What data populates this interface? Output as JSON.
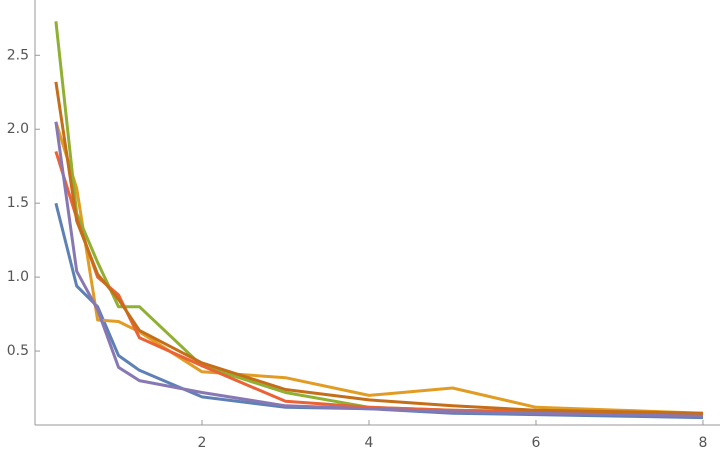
{
  "chart_data": {
    "type": "line",
    "x": [
      0.25,
      0.5,
      0.75,
      1,
      1.25,
      2,
      3,
      4,
      5,
      6,
      7,
      8
    ],
    "series": [
      {
        "color": "#5e81b5",
        "values": [
          1.5,
          0.94,
          0.8,
          0.47,
          0.37,
          0.19,
          0.12,
          0.11,
          0.08,
          0.07,
          0.06,
          0.05
        ]
      },
      {
        "color": "#e19c24",
        "values": [
          2.05,
          1.6,
          0.71,
          0.7,
          0.63,
          0.36,
          0.32,
          0.2,
          0.25,
          0.12,
          0.1,
          0.08
        ]
      },
      {
        "color": "#8fb032",
        "values": [
          2.73,
          1.43,
          1.1,
          0.8,
          0.8,
          0.4,
          0.22,
          0.12,
          0.1,
          0.09,
          0.08,
          0.07
        ]
      },
      {
        "color": "#eb6235",
        "values": [
          1.85,
          1.4,
          1.0,
          0.88,
          0.59,
          0.4,
          0.16,
          0.12,
          0.1,
          0.09,
          0.08,
          0.07
        ]
      },
      {
        "color": "#8778b3",
        "values": [
          2.05,
          1.04,
          0.78,
          0.39,
          0.3,
          0.22,
          0.13,
          0.11,
          0.09,
          0.08,
          0.07,
          0.06
        ]
      },
      {
        "color": "#c56e1a",
        "values": [
          2.32,
          1.38,
          1.02,
          0.85,
          0.64,
          0.42,
          0.24,
          0.17,
          0.13,
          0.1,
          0.09,
          0.08
        ]
      }
    ],
    "xlim": [
      0,
      8.18
    ],
    "ylim": [
      0,
      2.84
    ],
    "xticks": [
      2,
      4,
      6,
      8
    ],
    "yticks": [
      0.5,
      {
        "value": 1,
        "label": "1.0"
      },
      1.5,
      {
        "value": 2,
        "label": "2.0"
      },
      2.5
    ]
  }
}
